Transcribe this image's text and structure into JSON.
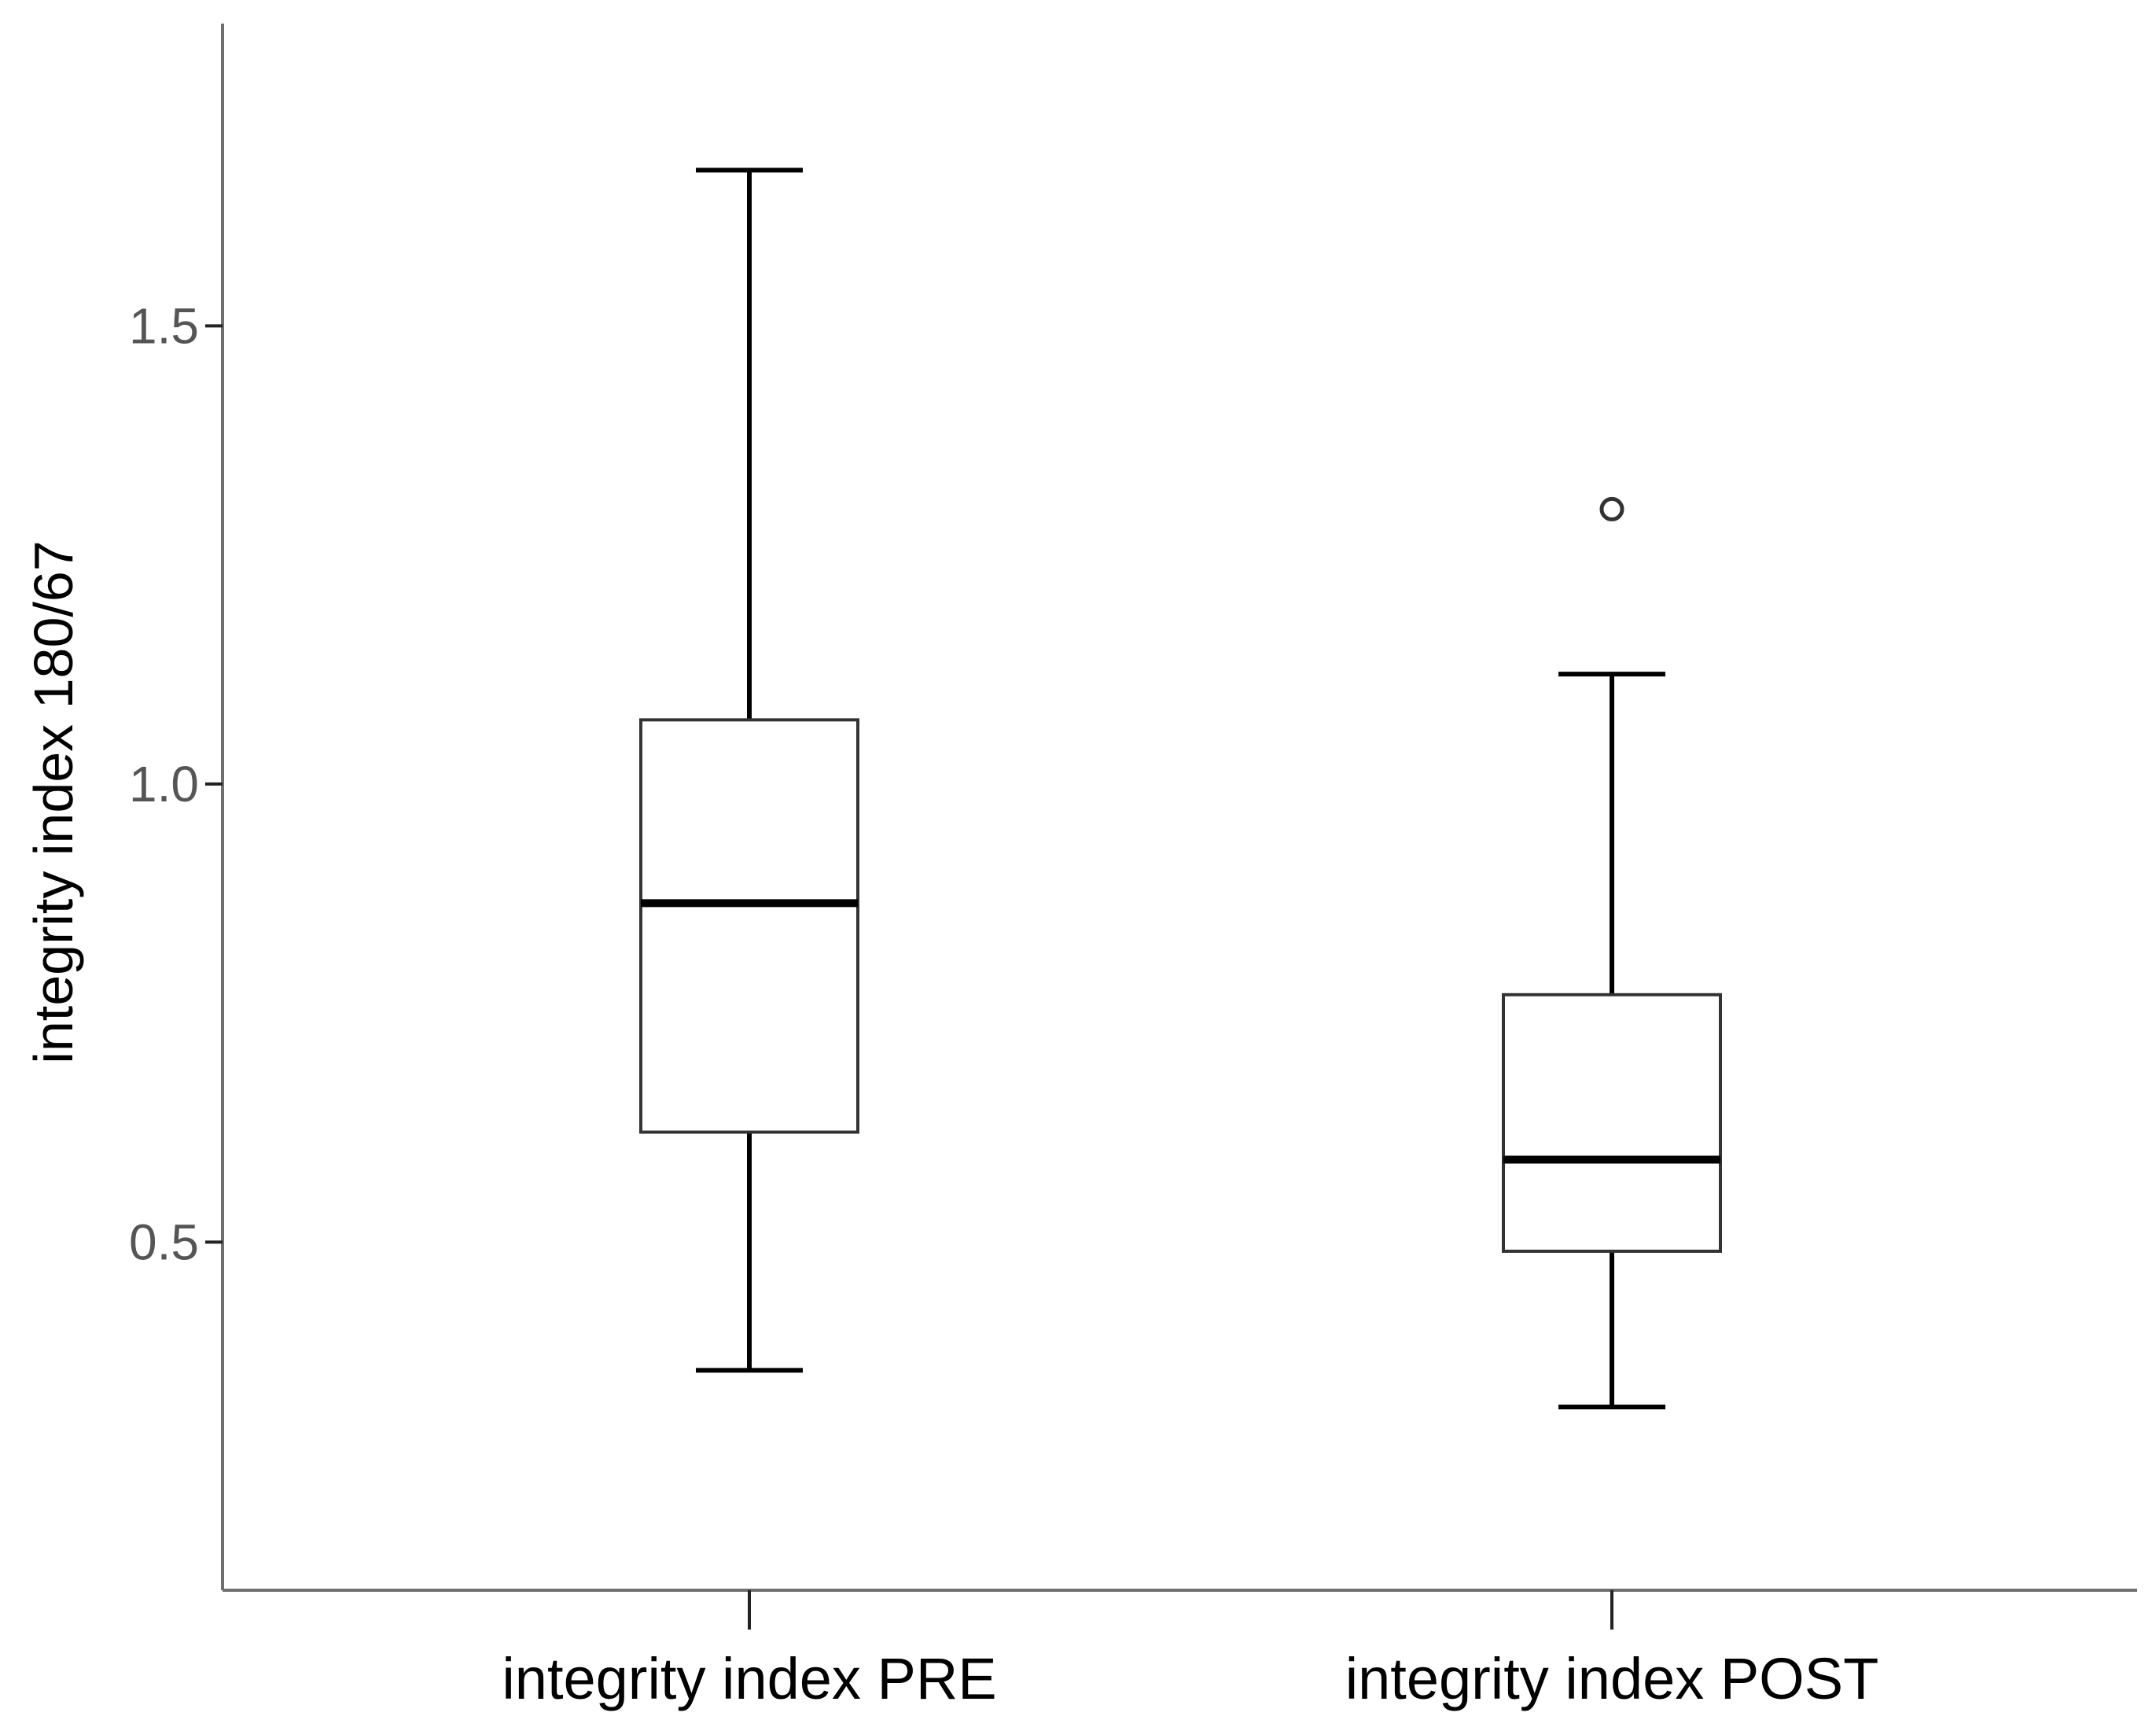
{
  "chart_data": {
    "type": "boxplot",
    "ylabel": "integrity index 180/67",
    "yticks": [
      "0.5",
      "1.0",
      "1.5"
    ],
    "ylim": [
      0.12,
      1.83
    ],
    "categories": [
      "integrity index PRE",
      "integrity index POST"
    ],
    "boxes": [
      {
        "label": "integrity index PRE",
        "whisker_low": 0.36,
        "q1": 0.62,
        "median": 0.87,
        "q3": 1.07,
        "whisker_high": 1.67,
        "outliers": []
      },
      {
        "label": "integrity index POST",
        "whisker_low": 0.32,
        "q1": 0.49,
        "median": 0.59,
        "q3": 0.77,
        "whisker_high": 1.12,
        "outliers": [
          1.3
        ]
      }
    ],
    "grid": false,
    "legend": "none"
  }
}
